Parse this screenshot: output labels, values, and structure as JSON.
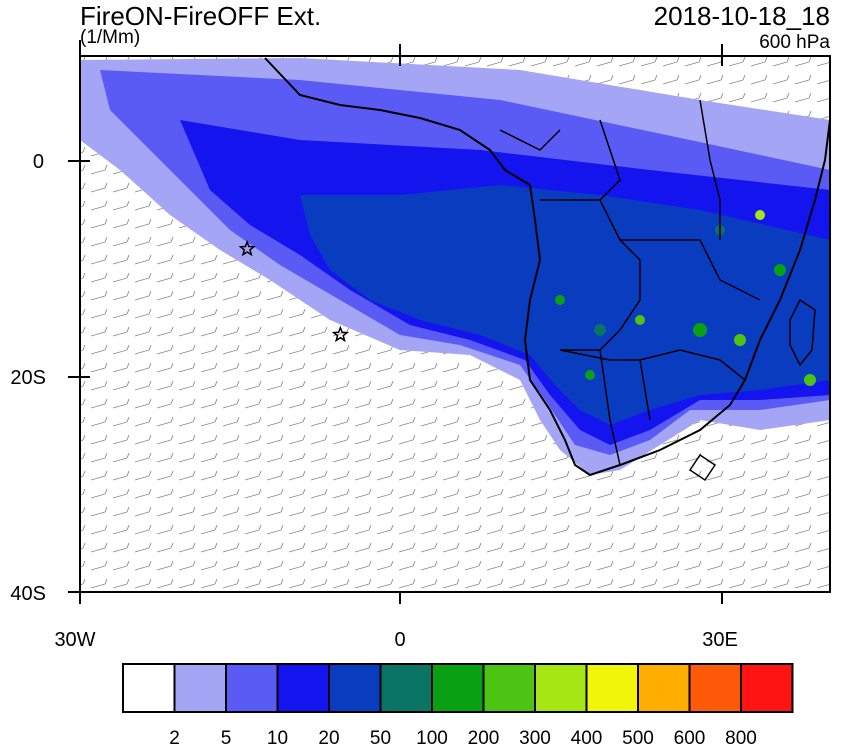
{
  "header": {
    "title": "FireON-FireOFF Ext.",
    "units": "(1/Mm)",
    "datetime": "2018-10-18_18",
    "level": "600 hPa"
  },
  "axes": {
    "lon_labels": [
      "30W",
      "0",
      "30E"
    ],
    "lat_labels": [
      "0",
      "20S",
      "40S"
    ],
    "lon_range": [
      -30,
      40
    ],
    "lat_range": [
      -40,
      10
    ]
  },
  "colorbar": {
    "labels": [
      "2",
      "5",
      "10",
      "20",
      "50",
      "100",
      "200",
      "300",
      "400",
      "500",
      "600",
      "800"
    ],
    "colors": [
      "#ffffff",
      "#a5a5f5",
      "#5a5af5",
      "#1414ee",
      "#0a3cc0",
      "#0a7464",
      "#0aa014",
      "#4dc314",
      "#a5e614",
      "#f0f50a",
      "#ffae00",
      "#ff5a0a",
      "#ff1414"
    ]
  },
  "markers": [
    {
      "name": "star-marker-1",
      "lon": -14.4,
      "lat": -8.0
    },
    {
      "name": "star-marker-2",
      "lon": -5.7,
      "lat": -16.0
    }
  ]
}
